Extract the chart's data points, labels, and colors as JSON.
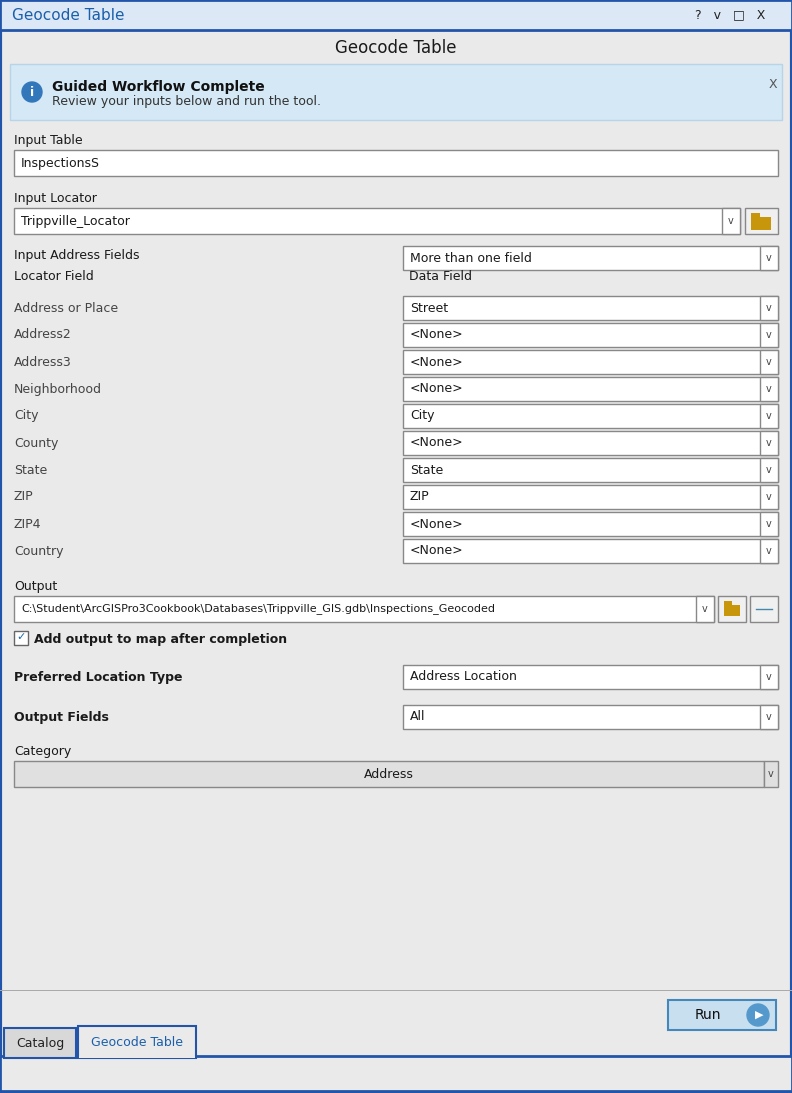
{
  "title_bar_text": "Geocode Table",
  "title_bar_color": "#dce8f5",
  "title_bar_text_color": "#1a5fac",
  "window_bg": "#eaeaea",
  "dialog_title": "Geocode Table",
  "dialog_title_color": "#1a1a1a",
  "banner_bg": "#d4e8f5",
  "banner_border": "#b8d4e8",
  "banner_title": "Guided Workflow Complete",
  "banner_body": "Review your inputs below and run the tool.",
  "input_table_label": "Input Table",
  "input_table_value": "InspectionsS",
  "input_locator_label": "Input Locator",
  "input_locator_value": "Trippville_Locator",
  "input_address_fields_label": "Input Address Fields",
  "input_address_fields_value": "More than one field",
  "locator_field_label": "Locator Field",
  "locator_field_col2": "Data Field",
  "address_rows": [
    [
      "Address or Place",
      "Street"
    ],
    [
      "Address2",
      "<None>"
    ],
    [
      "Address3",
      "<None>"
    ],
    [
      "Neighborhood",
      "<None>"
    ],
    [
      "City",
      "City"
    ],
    [
      "County",
      "<None>"
    ],
    [
      "State",
      "State"
    ],
    [
      "ZIP",
      "ZIP"
    ],
    [
      "ZIP4",
      "<None>"
    ],
    [
      "Country",
      "<None>"
    ]
  ],
  "output_label": "Output",
  "output_value": "C:\\Student\\ArcGISPro3Cookbook\\Databases\\Trippville_GIS.gdb\\Inspections_Geocoded",
  "checkbox_label": "Add output to map after completion",
  "pref_loc_label": "Preferred Location Type",
  "pref_loc_value": "Address Location",
  "output_fields_label": "Output Fields",
  "output_fields_value": "All",
  "category_label": "Category",
  "category_value": "Address",
  "run_button": "Run",
  "tab1": "Catalog",
  "tab2": "Geocode Table",
  "border_color": "#2255aa",
  "field_border_color": "#888888",
  "dropdown_border_color": "#888888",
  "text_color": "#1a1a1a",
  "field_bg": "#ffffff",
  "dropdown_bg": "#ffffff",
  "folder_color": "#c8960a",
  "run_btn_bg": "#c8dff0",
  "run_btn_border": "#4488bb",
  "run_icon_bg": "#5599cc"
}
